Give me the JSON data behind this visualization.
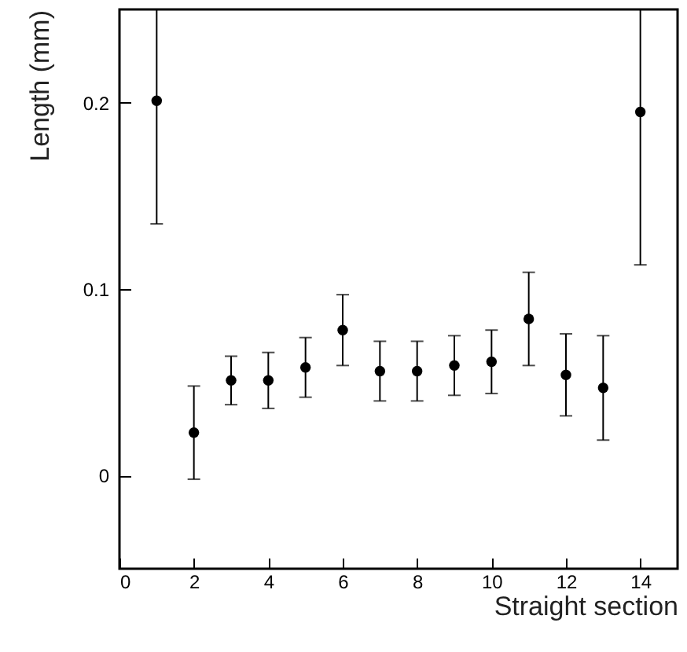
{
  "chart_data": {
    "type": "scatter",
    "xlabel": "Straight section",
    "ylabel": "Length (mm)",
    "x": [
      1,
      2,
      3,
      4,
      5,
      6,
      7,
      8,
      9,
      10,
      11,
      12,
      13,
      14
    ],
    "series": [
      {
        "color": "#000000",
        "values": [
          0.201,
          0.023,
          0.051,
          0.051,
          0.058,
          0.078,
          0.056,
          0.056,
          0.059,
          0.061,
          0.084,
          0.054,
          0.047,
          0.195
        ],
        "errors": [
          [
            0.135,
            0.25
          ],
          [
            -0.002,
            0.048
          ],
          [
            0.038,
            0.064
          ],
          [
            0.036,
            0.066
          ],
          [
            0.042,
            0.074
          ],
          [
            0.059,
            0.097
          ],
          [
            0.04,
            0.072
          ],
          [
            0.04,
            0.072
          ],
          [
            0.043,
            0.075
          ],
          [
            0.044,
            0.078
          ],
          [
            0.059,
            0.109
          ],
          [
            0.032,
            0.076
          ],
          [
            0.019,
            0.075
          ],
          [
            0.113,
            0.25
          ]
        ]
      }
    ],
    "xlim": [
      0,
      15
    ],
    "xticks": [
      0,
      2,
      4,
      6,
      8,
      10,
      12,
      14
    ],
    "ylim": [
      -0.05,
      0.25
    ],
    "yticks": [
      0,
      0.1,
      0.2
    ],
    "grid": false,
    "marker": "circle"
  }
}
